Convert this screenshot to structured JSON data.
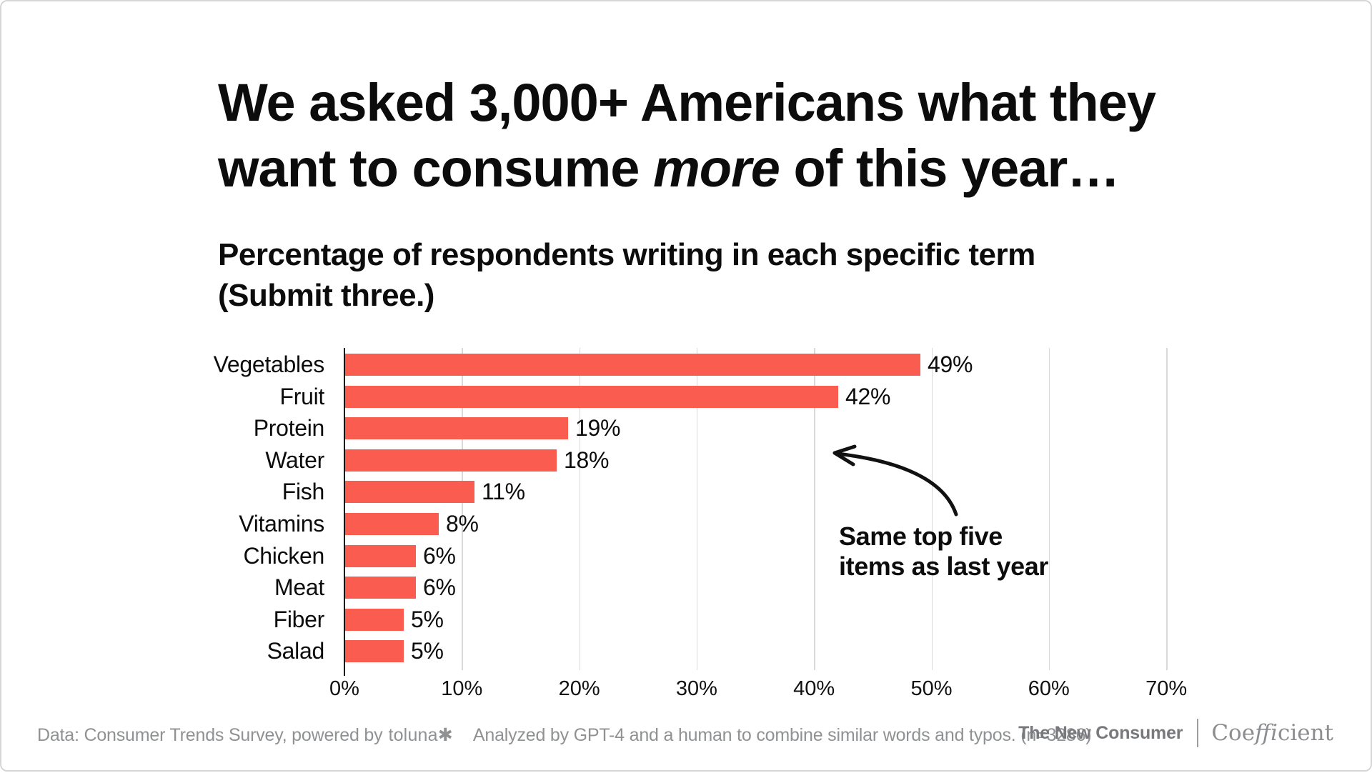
{
  "title": {
    "line1": "We asked 3,000+ Americans what they",
    "line2_pre": "want to consume ",
    "line2_italic": "more",
    "line2_post": " of this year…"
  },
  "subtitle": {
    "line1": "Percentage of respondents writing in each specific term",
    "line2": "(Submit three.)"
  },
  "chart_data": {
    "type": "bar",
    "orientation": "horizontal",
    "title": "Percentage of respondents writing in each specific term (Submit three.)",
    "categories": [
      "Vegetables",
      "Fruit",
      "Protein",
      "Water",
      "Fish",
      "Vitamins",
      "Chicken",
      "Meat",
      "Fiber",
      "Salad"
    ],
    "values": [
      49,
      42,
      19,
      18,
      11,
      8,
      6,
      6,
      5,
      5
    ],
    "value_labels": [
      "49%",
      "42%",
      "19%",
      "18%",
      "11%",
      "8%",
      "6%",
      "6%",
      "5%",
      "5%"
    ],
    "x_ticks": [
      "0%",
      "10%",
      "20%",
      "30%",
      "40%",
      "50%",
      "60%",
      "70%"
    ],
    "xlim": [
      0,
      70
    ],
    "grid": true,
    "bar_color": "#fa5c50",
    "annotation": "Same top five items as last year"
  },
  "annotation": {
    "line1": "Same top five",
    "line2": "items as last year"
  },
  "footer": {
    "data_source": "Data: Consumer Trends Survey, powered by",
    "toluna_logo": "toluna✱",
    "analysis": "Analyzed by GPT-4 and a human to combine similar words and typos. (n=3286)",
    "brand_primary": "The New Consumer",
    "coefficient_pre": "Coe",
    "coefficient_italic": "ffi",
    "coefficient_post": "cient"
  }
}
